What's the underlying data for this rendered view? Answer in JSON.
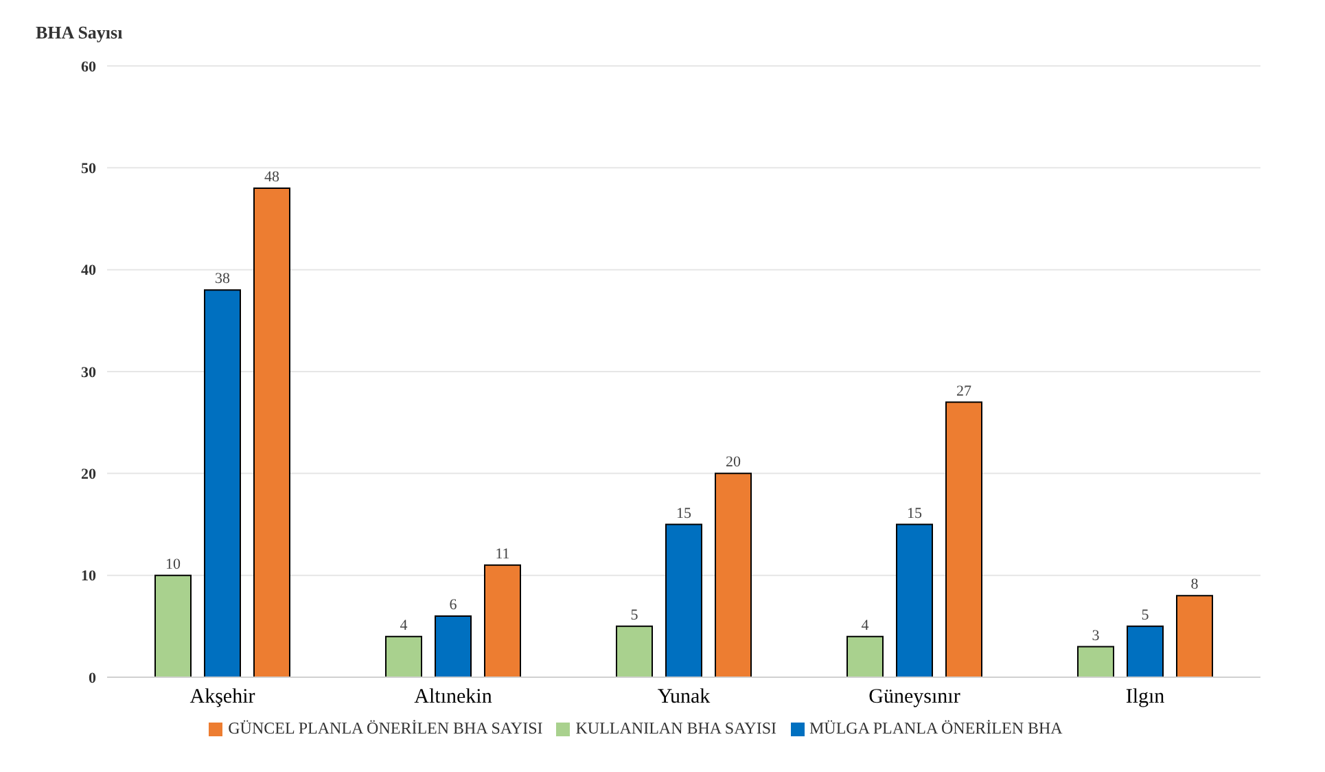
{
  "chart_data": {
    "type": "bar",
    "ylabel": "BHA Sayısı",
    "categories": [
      "Akşehir",
      "Altınekin",
      "Yunak",
      "Güneysınır",
      "Ilgın"
    ],
    "series": [
      {
        "name": "KULLANILAN BHA SAYISI",
        "color": "#a9d18e",
        "values": [
          10,
          4,
          5,
          4,
          3
        ]
      },
      {
        "name": "MÜLGA PLANLA ÖNERİLEN BHA",
        "color": "#0070c0",
        "values": [
          38,
          6,
          15,
          15,
          5
        ]
      },
      {
        "name": "GÜNCEL PLANLA ÖNERİLEN BHA SAYISI",
        "color": "#ed7d31",
        "values": [
          48,
          11,
          20,
          27,
          8
        ]
      }
    ],
    "ylim": [
      0,
      60
    ],
    "yticks": [
      0,
      10,
      20,
      30,
      40,
      50,
      60
    ],
    "grid": "y",
    "legend": "bottom",
    "data_labels": true
  }
}
